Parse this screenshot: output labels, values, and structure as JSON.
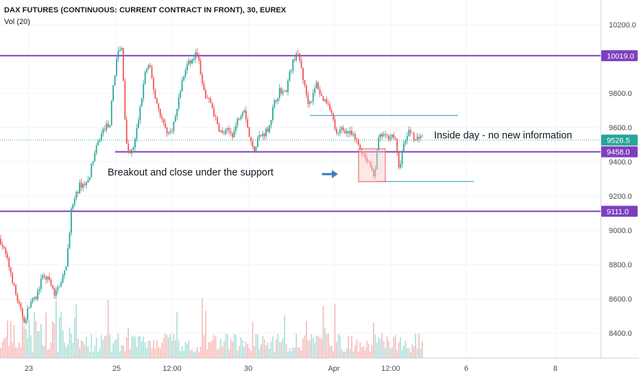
{
  "header": {
    "title": "DAX FUTURES (CONTINUOUS: CURRENT CONTRACT IN FRONT), 30, EUREX",
    "indicator": "Vol (20)"
  },
  "annotations": {
    "breakout": "Breakout and close under the support",
    "inside_day": "Inside day - no new information"
  },
  "colors": {
    "up": "#26a69a",
    "down": "#ef5350",
    "level": "#7e3fbf",
    "trendline": "#4fa8c9",
    "arrow": "#3d7dc4",
    "highlight_fill": "#f8c9c9",
    "highlight_border": "#ef5350",
    "last_price": "#26a69a"
  },
  "icons": {
    "arrow": "right-arrow-icon"
  },
  "chart_data": {
    "type": "candlestick",
    "title": "DAX FUTURES (CONTINUOUS: CURRENT CONTRACT IN FRONT), 30, EUREX",
    "timeframe": "30",
    "y_axis": {
      "ticks": [
        8400,
        8600,
        8800,
        9000,
        9200,
        9400,
        9600,
        9800,
        10200
      ],
      "range": [
        8300,
        10300
      ],
      "side": "right"
    },
    "x_axis": {
      "labels": [
        "23",
        "25",
        "12:00",
        "30",
        "Apr",
        "12:00",
        "6",
        "8"
      ]
    },
    "price_labels": [
      {
        "text": "10019.0",
        "value": 10019,
        "kind": "level"
      },
      {
        "text": "9526.5",
        "value": 9526.5,
        "kind": "last"
      },
      {
        "text": "9458.0",
        "value": 9458,
        "kind": "level"
      },
      {
        "text": "9111.0",
        "value": 9111,
        "kind": "level"
      }
    ],
    "horizontal_levels": [
      10019,
      9458,
      9111
    ],
    "last_price": 9526.5,
    "range_lines": [
      {
        "from": "30",
        "to": "Apr",
        "value": 9670
      },
      {
        "from": "Apr",
        "to": "6",
        "value": 9285
      }
    ],
    "inside_day_box": {
      "from": "Apr",
      "to": "12:00",
      "low": 9285,
      "high": 9480
    },
    "close_path": [
      [
        0,
        8950
      ],
      [
        8,
        8860
      ],
      [
        16,
        8750
      ],
      [
        22,
        8640
      ],
      [
        30,
        8530
      ],
      [
        36,
        8470
      ],
      [
        44,
        8580
      ],
      [
        52,
        8600
      ],
      [
        58,
        8680
      ],
      [
        64,
        8740
      ],
      [
        72,
        8700
      ],
      [
        80,
        8620
      ],
      [
        88,
        8700
      ],
      [
        96,
        8760
      ],
      [
        104,
        9120
      ],
      [
        116,
        9260
      ],
      [
        128,
        9280
      ],
      [
        136,
        9420
      ],
      [
        144,
        9520
      ],
      [
        152,
        9600
      ],
      [
        160,
        9620
      ],
      [
        166,
        9880
      ],
      [
        172,
        10040
      ],
      [
        178,
        10060
      ],
      [
        184,
        9500
      ],
      [
        190,
        9440
      ],
      [
        196,
        9500
      ],
      [
        204,
        9700
      ],
      [
        212,
        9930
      ],
      [
        218,
        9960
      ],
      [
        226,
        9780
      ],
      [
        232,
        9700
      ],
      [
        240,
        9600
      ],
      [
        248,
        9560
      ],
      [
        256,
        9660
      ],
      [
        264,
        9840
      ],
      [
        272,
        9960
      ],
      [
        280,
        9990
      ],
      [
        288,
        10040
      ],
      [
        294,
        9860
      ],
      [
        300,
        9780
      ],
      [
        308,
        9740
      ],
      [
        316,
        9620
      ],
      [
        324,
        9560
      ],
      [
        332,
        9580
      ],
      [
        340,
        9560
      ],
      [
        348,
        9660
      ],
      [
        356,
        9720
      ],
      [
        364,
        9540
      ],
      [
        370,
        9460
      ],
      [
        376,
        9540
      ],
      [
        384,
        9560
      ],
      [
        392,
        9600
      ],
      [
        400,
        9740
      ],
      [
        408,
        9820
      ],
      [
        416,
        9800
      ],
      [
        424,
        9940
      ],
      [
        432,
        10040
      ],
      [
        438,
        9980
      ],
      [
        444,
        9840
      ],
      [
        450,
        9740
      ],
      [
        456,
        9780
      ],
      [
        462,
        9860
      ],
      [
        468,
        9780
      ],
      [
        474,
        9760
      ],
      [
        480,
        9740
      ],
      [
        486,
        9640
      ],
      [
        492,
        9540
      ],
      [
        498,
        9600
      ],
      [
        504,
        9580
      ],
      [
        512,
        9560
      ],
      [
        520,
        9520
      ],
      [
        528,
        9460
      ],
      [
        534,
        9420
      ],
      [
        540,
        9380
      ],
      [
        546,
        9320
      ],
      [
        552,
        9530
      ],
      [
        558,
        9560
      ],
      [
        564,
        9540
      ],
      [
        570,
        9560
      ],
      [
        576,
        9540
      ],
      [
        582,
        9360
      ],
      [
        588,
        9480
      ],
      [
        594,
        9560
      ],
      [
        600,
        9580
      ],
      [
        606,
        9520
      ],
      [
        612,
        9560
      ],
      [
        618,
        9526
      ]
    ],
    "volume_scale_note": "Vol (20)"
  }
}
